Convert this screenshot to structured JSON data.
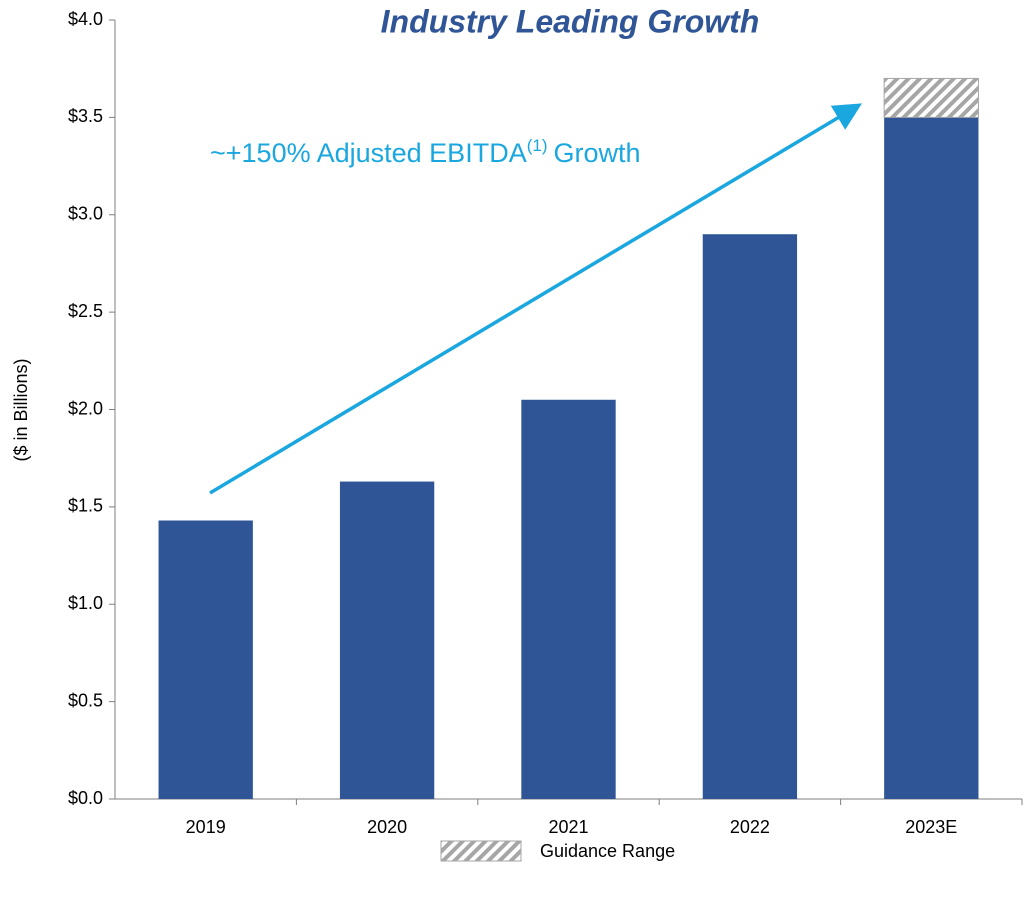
{
  "chart_data": {
    "type": "stacked_bar",
    "title": "Industry Leading Growth",
    "ylabel": "($ in Billions)",
    "annotation": {
      "text": "~+150% Adjusted EBITDA",
      "superscript": "(1)",
      "text_after": "Growth",
      "color": "#1aa7e0"
    },
    "categories": [
      "2019",
      "2020",
      "2021",
      "2022",
      "2023E"
    ],
    "series": [
      {
        "color": "#2f5597",
        "values": [
          1.43,
          1.63,
          2.05,
          2.9,
          3.5
        ]
      },
      {
        "name": "Guidance Range",
        "color": "#a6a6a6",
        "pattern": "hatch",
        "values": [
          null,
          null,
          null,
          null,
          0.2
        ]
      }
    ],
    "ylim": [
      0,
      4
    ],
    "yticks": [
      {
        "value": 0,
        "label": "$0.0"
      },
      {
        "value": 0.5,
        "label": "$0.5"
      },
      {
        "value": 1,
        "label": "$1.0"
      },
      {
        "value": 1.5,
        "label": "$1.5"
      },
      {
        "value": 2,
        "label": "$2.0"
      },
      {
        "value": 2.5,
        "label": "$2.5"
      },
      {
        "value": 3,
        "label": "$3.0"
      },
      {
        "value": 3.5,
        "label": "$3.5"
      },
      {
        "value": 4,
        "label": "$4.0"
      }
    ],
    "grid": false,
    "legend": "bottom"
  }
}
